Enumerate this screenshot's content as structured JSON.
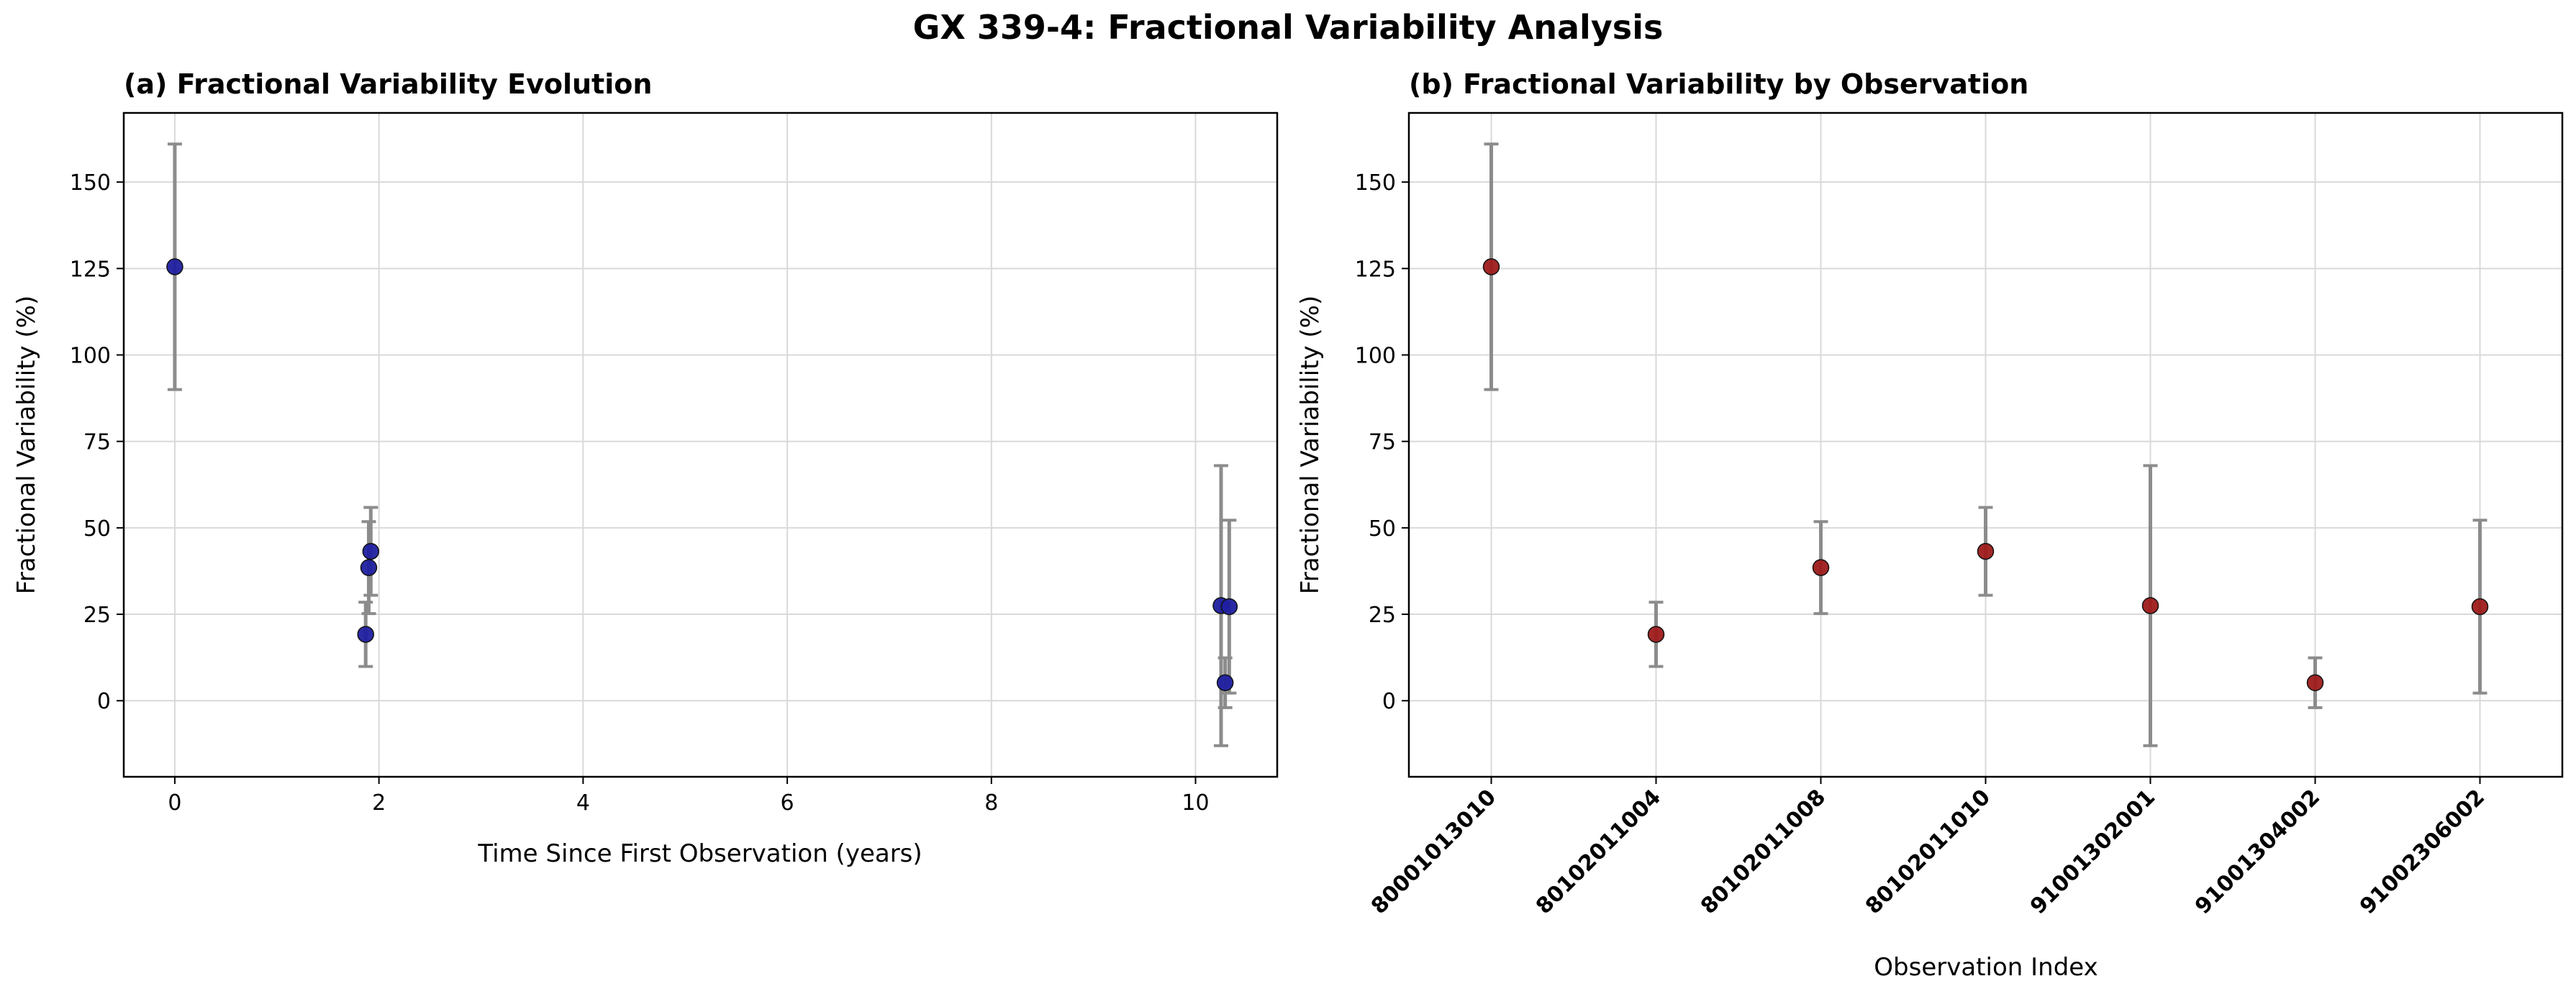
{
  "figure": {
    "title": "GX 339-4: Fractional Variability Analysis"
  },
  "colors": {
    "panel_a_marker": "#1f1fa0",
    "panel_b_marker": "#9e1b1b",
    "errorbar": "#8c8c8c",
    "grid": "#d9d9d9"
  },
  "chart_data": [
    {
      "type": "scatter",
      "title": "(a) Fractional Variability Evolution",
      "xlabel": "Time Since First Observation (years)",
      "ylabel": "Fractional Variability (%)",
      "xlim": [
        -0.5,
        10.8
      ],
      "ylim": [
        -22,
        170
      ],
      "xticks": [
        0,
        2,
        4,
        6,
        8,
        10
      ],
      "yticks": [
        0,
        25,
        50,
        75,
        100,
        125,
        150
      ],
      "grid": true,
      "points": [
        {
          "x": 0.0,
          "y": 125.5,
          "err": 35.5
        },
        {
          "x": 1.87,
          "y": 19.2,
          "err": 9.3
        },
        {
          "x": 1.9,
          "y": 38.5,
          "err": 13.3
        },
        {
          "x": 1.92,
          "y": 43.2,
          "err": 12.7
        },
        {
          "x": 10.25,
          "y": 27.5,
          "err": 40.5
        },
        {
          "x": 10.29,
          "y": 5.2,
          "err": 7.2
        },
        {
          "x": 10.33,
          "y": 27.2,
          "err": 25.0
        }
      ]
    },
    {
      "type": "scatter",
      "title": "(b) Fractional Variability by Observation",
      "xlabel": "Observation Index",
      "ylabel": "Fractional Variability (%)",
      "ylim": [
        -22,
        170
      ],
      "yticks": [
        0,
        25,
        50,
        75,
        100,
        125,
        150
      ],
      "grid": true,
      "categories": [
        "80001013010",
        "80102011004",
        "80102011008",
        "80102011010",
        "91001302001",
        "91001304002",
        "91002306002"
      ],
      "values": [
        125.5,
        19.2,
        38.5,
        43.2,
        27.5,
        5.2,
        27.2
      ],
      "errors": [
        35.5,
        9.3,
        13.3,
        12.7,
        40.5,
        7.2,
        25.0
      ]
    }
  ]
}
